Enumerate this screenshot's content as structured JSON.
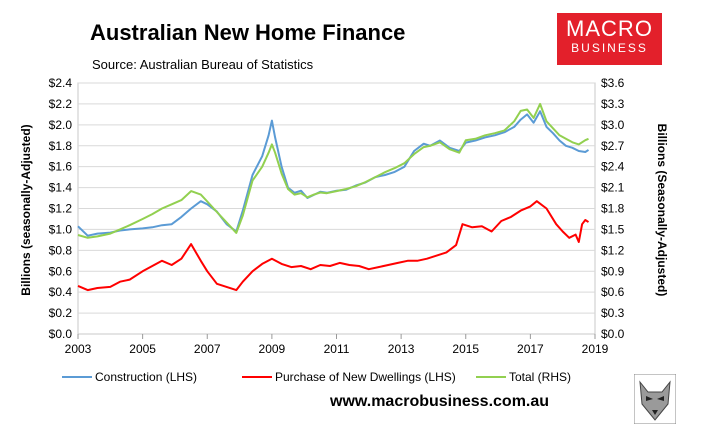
{
  "header": {
    "title": "Australian New Home Finance",
    "subtitle": "Source: Australian Bureau of Statistics"
  },
  "logo": {
    "line1": "MACRO",
    "line2": "BUSINESS"
  },
  "footer": {
    "website": "www.macrobusiness.com.au"
  },
  "icons": {
    "logo_mark": "wolf-head-icon"
  },
  "colors": {
    "construction": "#5b9bd5",
    "purchase": "#ff0000",
    "total": "#92d050",
    "brand": "#e3202b"
  },
  "chart_data": {
    "type": "line",
    "ylabel": "Billions (seasonally-Adjusted)",
    "y2label": "Billions (Seasonally-Adjusted)",
    "xlim": [
      2003,
      2019
    ],
    "ylim": [
      0,
      2.4
    ],
    "y2lim": [
      0,
      3.6
    ],
    "x_ticks": [
      "2003",
      "2005",
      "2007",
      "2009",
      "2011",
      "2013",
      "2015",
      "2017",
      "2019"
    ],
    "y_ticks": [
      "$0.0",
      "$0.2",
      "$0.4",
      "$0.6",
      "$0.8",
      "$1.0",
      "$1.2",
      "$1.4",
      "$1.6",
      "$1.8",
      "$2.0",
      "$2.2",
      "$2.4"
    ],
    "y2_ticks": [
      "$0.0",
      "$0.3",
      "$0.6",
      "$0.9",
      "$1.2",
      "$1.5",
      "$1.8",
      "$2.1",
      "$2.4",
      "$2.7",
      "$3.0",
      "$3.3",
      "$3.6"
    ],
    "grid": true,
    "legend_position": "bottom",
    "series": [
      {
        "name": "Construction (LHS)",
        "axis": "left",
        "color": "#5b9bd5",
        "x": [
          2003.0,
          2003.3,
          2003.6,
          2004.0,
          2004.3,
          2004.6,
          2005.0,
          2005.3,
          2005.6,
          2005.9,
          2006.2,
          2006.5,
          2006.8,
          2007.0,
          2007.3,
          2007.6,
          2007.9,
          2008.1,
          2008.4,
          2008.7,
          2008.9,
          2009.0,
          2009.1,
          2009.3,
          2009.5,
          2009.7,
          2009.9,
          2010.1,
          2010.3,
          2010.5,
          2010.7,
          2011.0,
          2011.3,
          2011.6,
          2011.9,
          2012.2,
          2012.5,
          2012.8,
          2013.1,
          2013.4,
          2013.7,
          2013.9,
          2014.2,
          2014.5,
          2014.8,
          2015.0,
          2015.3,
          2015.6,
          2015.9,
          2016.2,
          2016.5,
          2016.7,
          2016.9,
          2017.1,
          2017.3,
          2017.5,
          2017.7,
          2017.9,
          2018.1,
          2018.3,
          2018.5,
          2018.7,
          2018.8
        ],
        "values": [
          1.03,
          0.94,
          0.96,
          0.97,
          0.99,
          1.0,
          1.01,
          1.02,
          1.04,
          1.05,
          1.12,
          1.2,
          1.27,
          1.24,
          1.17,
          1.05,
          0.98,
          1.18,
          1.52,
          1.7,
          1.9,
          2.04,
          1.88,
          1.6,
          1.4,
          1.35,
          1.37,
          1.3,
          1.33,
          1.36,
          1.35,
          1.37,
          1.38,
          1.42,
          1.45,
          1.5,
          1.52,
          1.55,
          1.6,
          1.75,
          1.82,
          1.8,
          1.85,
          1.78,
          1.75,
          1.83,
          1.85,
          1.88,
          1.9,
          1.93,
          1.98,
          2.05,
          2.1,
          2.02,
          2.13,
          1.98,
          1.92,
          1.85,
          1.8,
          1.78,
          1.75,
          1.74,
          1.76
        ]
      },
      {
        "name": "Purchase of New Dwellings (LHS)",
        "axis": "left",
        "color": "#ff0000",
        "x": [
          2003.0,
          2003.3,
          2003.6,
          2004.0,
          2004.3,
          2004.6,
          2005.0,
          2005.3,
          2005.6,
          2005.9,
          2006.2,
          2006.5,
          2006.8,
          2007.0,
          2007.3,
          2007.6,
          2007.9,
          2008.1,
          2008.4,
          2008.7,
          2009.0,
          2009.3,
          2009.6,
          2009.9,
          2010.2,
          2010.5,
          2010.8,
          2011.1,
          2011.4,
          2011.7,
          2012.0,
          2012.3,
          2012.6,
          2012.9,
          2013.2,
          2013.5,
          2013.8,
          2014.1,
          2014.4,
          2014.7,
          2014.9,
          2015.2,
          2015.5,
          2015.8,
          2016.1,
          2016.4,
          2016.7,
          2017.0,
          2017.2,
          2017.5,
          2017.8,
          2018.0,
          2018.2,
          2018.4,
          2018.5,
          2018.6,
          2018.7,
          2018.8
        ],
        "values": [
          0.46,
          0.42,
          0.44,
          0.45,
          0.5,
          0.52,
          0.6,
          0.65,
          0.7,
          0.66,
          0.72,
          0.86,
          0.7,
          0.6,
          0.48,
          0.45,
          0.42,
          0.5,
          0.6,
          0.67,
          0.72,
          0.67,
          0.64,
          0.65,
          0.62,
          0.66,
          0.65,
          0.68,
          0.66,
          0.65,
          0.62,
          0.64,
          0.66,
          0.68,
          0.7,
          0.7,
          0.72,
          0.75,
          0.78,
          0.85,
          1.05,
          1.02,
          1.03,
          0.98,
          1.08,
          1.12,
          1.18,
          1.22,
          1.27,
          1.2,
          1.05,
          0.98,
          0.92,
          0.95,
          0.88,
          1.05,
          1.09,
          1.07
        ]
      },
      {
        "name": "Total (RHS)",
        "axis": "right",
        "color": "#92d050",
        "x": [
          2003.0,
          2003.3,
          2003.6,
          2004.0,
          2004.3,
          2004.6,
          2005.0,
          2005.3,
          2005.6,
          2005.9,
          2006.2,
          2006.5,
          2006.8,
          2007.0,
          2007.3,
          2007.6,
          2007.9,
          2008.1,
          2008.4,
          2008.7,
          2008.9,
          2009.0,
          2009.1,
          2009.3,
          2009.5,
          2009.7,
          2009.9,
          2010.1,
          2010.3,
          2010.5,
          2010.7,
          2011.0,
          2011.3,
          2011.6,
          2011.9,
          2012.2,
          2012.5,
          2012.8,
          2013.1,
          2013.4,
          2013.7,
          2013.9,
          2014.2,
          2014.5,
          2014.8,
          2015.0,
          2015.3,
          2015.6,
          2015.9,
          2016.2,
          2016.5,
          2016.7,
          2016.9,
          2017.1,
          2017.3,
          2017.5,
          2017.7,
          2017.9,
          2018.1,
          2018.3,
          2018.5,
          2018.7,
          2018.8
        ],
        "values": [
          1.42,
          1.38,
          1.4,
          1.44,
          1.5,
          1.56,
          1.65,
          1.72,
          1.8,
          1.86,
          1.92,
          2.05,
          2.0,
          1.9,
          1.75,
          1.6,
          1.45,
          1.7,
          2.2,
          2.4,
          2.6,
          2.72,
          2.6,
          2.3,
          2.08,
          2.0,
          2.02,
          1.96,
          2.0,
          2.03,
          2.02,
          2.05,
          2.08,
          2.12,
          2.18,
          2.25,
          2.32,
          2.38,
          2.45,
          2.58,
          2.68,
          2.7,
          2.75,
          2.65,
          2.6,
          2.78,
          2.8,
          2.85,
          2.88,
          2.92,
          3.05,
          3.2,
          3.22,
          3.1,
          3.3,
          3.05,
          2.95,
          2.85,
          2.8,
          2.75,
          2.72,
          2.78,
          2.8
        ]
      }
    ]
  }
}
